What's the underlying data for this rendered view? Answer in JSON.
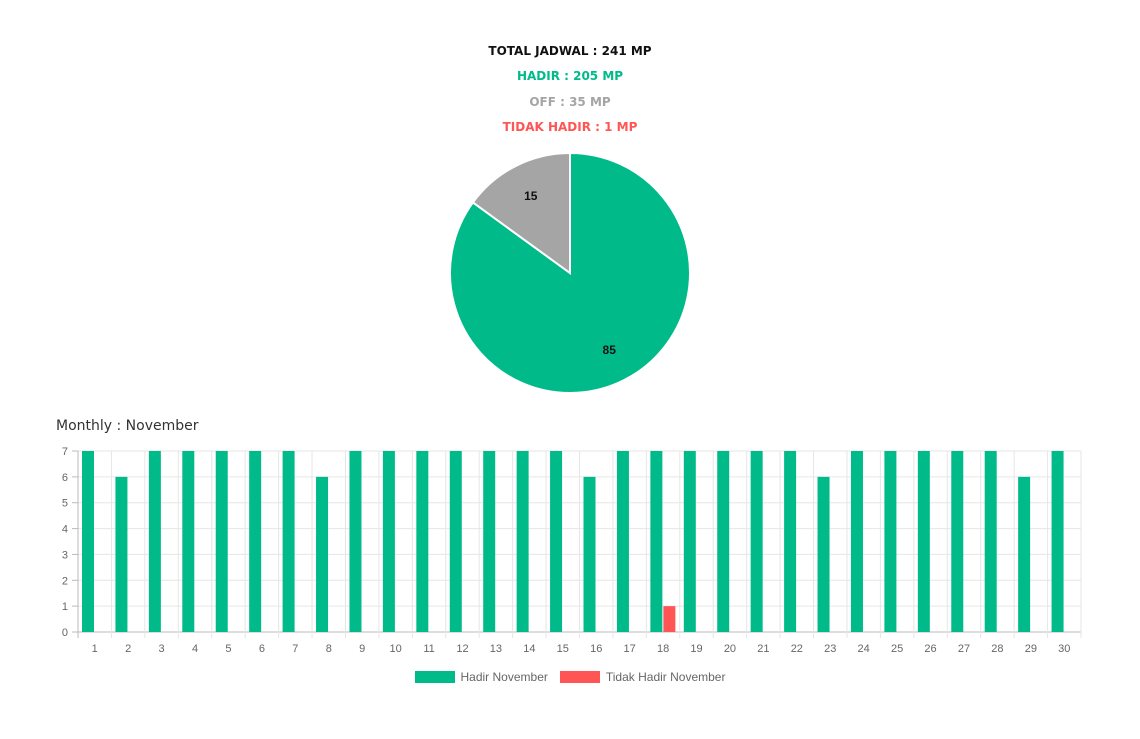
{
  "summary": {
    "total": "TOTAL JADWAL : 241 MP",
    "hadir": "HADIR : 205 MP",
    "off": "OFF : 35 MP",
    "tidak_hadir": "TIDAK HADIR : 1 MP"
  },
  "colors": {
    "total": "#111111",
    "hadir": "#00bb89",
    "off": "#a5a5a5",
    "tidak_hadir": "#ff5555"
  },
  "monthly_title": "Monthly : November",
  "chart_data": [
    {
      "type": "pie",
      "labels": [
        "Hadir",
        "Off"
      ],
      "values": [
        85,
        15
      ],
      "colors": [
        "#00bb89",
        "#a5a5a5"
      ],
      "data_labels": [
        "85",
        "15"
      ]
    },
    {
      "type": "bar",
      "categories": [
        "1",
        "2",
        "3",
        "4",
        "5",
        "6",
        "7",
        "8",
        "9",
        "10",
        "11",
        "12",
        "13",
        "14",
        "15",
        "16",
        "17",
        "18",
        "19",
        "20",
        "21",
        "22",
        "23",
        "24",
        "25",
        "26",
        "27",
        "28",
        "29",
        "30"
      ],
      "series": [
        {
          "name": "Hadir November",
          "color": "#00bb89",
          "values": [
            7,
            6,
            7,
            7,
            7,
            7,
            7,
            6,
            7,
            7,
            7,
            7,
            7,
            7,
            7,
            6,
            7,
            7,
            7,
            7,
            7,
            7,
            6,
            7,
            7,
            7,
            7,
            7,
            6,
            7
          ]
        },
        {
          "name": "Tidak Hadir November",
          "color": "#ff5555",
          "values": [
            0,
            0,
            0,
            0,
            0,
            0,
            0,
            0,
            0,
            0,
            0,
            0,
            0,
            0,
            0,
            0,
            0,
            1,
            0,
            0,
            0,
            0,
            0,
            0,
            0,
            0,
            0,
            0,
            0,
            0
          ]
        }
      ],
      "ylim": [
        0,
        7
      ],
      "yticks": [
        0,
        1,
        2,
        3,
        4,
        5,
        6,
        7
      ],
      "grid": true,
      "legend": "bottom"
    }
  ]
}
